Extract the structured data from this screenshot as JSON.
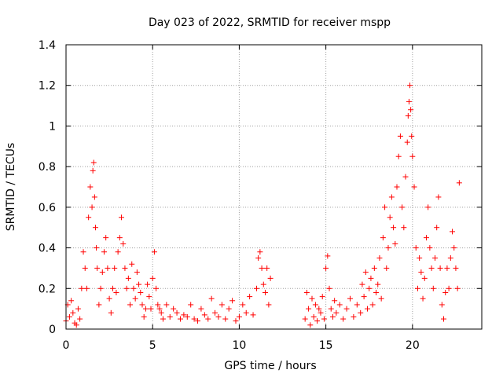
{
  "chart_data": {
    "type": "scatter",
    "title": "Day 023 of 2022, SRMTID for receiver mspp",
    "xlabel": "GPS time / hours",
    "ylabel": "SRMTID / TECUs",
    "xlim": [
      0,
      24
    ],
    "ylim": [
      0,
      1.4
    ],
    "x_ticks": [
      0,
      5,
      10,
      15,
      20
    ],
    "x_tick_labels": [
      "0",
      "5",
      "10",
      "15",
      "20"
    ],
    "y_ticks": [
      0,
      0.2,
      0.4,
      0.6,
      0.8,
      1,
      1.2,
      1.4
    ],
    "y_tick_labels": [
      "0",
      "0.2",
      "0.4",
      "0.6",
      "0.8",
      "1",
      "1.2",
      "1.4"
    ],
    "grid": true,
    "marker": "plus",
    "series_color": "#ff0000",
    "series": [
      {
        "name": "SRMTID",
        "x": [
          0.0,
          0.1,
          0.2,
          0.3,
          0.4,
          0.5,
          0.6,
          0.7,
          0.8,
          0.9,
          1.0,
          1.1,
          1.2,
          1.3,
          1.4,
          1.5,
          1.55,
          1.6,
          1.65,
          1.7,
          1.75,
          1.8,
          1.9,
          2.0,
          2.1,
          2.2,
          2.3,
          2.4,
          2.5,
          2.6,
          2.7,
          2.8,
          2.9,
          3.0,
          3.1,
          3.2,
          3.3,
          3.4,
          3.5,
          3.6,
          3.7,
          3.8,
          3.9,
          4.0,
          4.1,
          4.2,
          4.3,
          4.4,
          4.5,
          4.6,
          4.7,
          4.8,
          4.9,
          5.0,
          5.1,
          5.2,
          5.3,
          5.4,
          5.5,
          5.6,
          5.8,
          6.0,
          6.2,
          6.4,
          6.6,
          6.8,
          7.0,
          7.2,
          7.4,
          7.6,
          7.8,
          8.0,
          8.2,
          8.4,
          8.6,
          8.8,
          9.0,
          9.2,
          9.4,
          9.6,
          9.8,
          10.0,
          10.2,
          10.4,
          10.6,
          10.8,
          11.0,
          11.1,
          11.2,
          11.3,
          11.4,
          11.5,
          11.6,
          11.7,
          11.8,
          13.8,
          13.9,
          14.0,
          14.1,
          14.2,
          14.3,
          14.4,
          14.5,
          14.6,
          14.7,
          14.8,
          14.9,
          15.0,
          15.1,
          15.2,
          15.3,
          15.4,
          15.5,
          15.6,
          15.8,
          16.0,
          16.2,
          16.4,
          16.6,
          16.8,
          17.0,
          17.1,
          17.2,
          17.3,
          17.4,
          17.5,
          17.6,
          17.7,
          17.8,
          17.9,
          18.0,
          18.1,
          18.2,
          18.3,
          18.4,
          18.5,
          18.6,
          18.7,
          18.8,
          18.9,
          19.0,
          19.1,
          19.2,
          19.3,
          19.4,
          19.5,
          19.6,
          19.7,
          19.75,
          19.8,
          19.85,
          19.9,
          19.95,
          20.0,
          20.1,
          20.2,
          20.3,
          20.4,
          20.5,
          20.6,
          20.7,
          20.8,
          20.9,
          21.0,
          21.1,
          21.2,
          21.3,
          21.4,
          21.5,
          21.6,
          21.7,
          21.8,
          21.9,
          22.0,
          22.1,
          22.2,
          22.3,
          22.4,
          22.5,
          22.6,
          22.7
        ],
        "y": [
          0.04,
          0.12,
          0.06,
          0.14,
          0.08,
          0.03,
          0.02,
          0.1,
          0.05,
          0.2,
          0.38,
          0.3,
          0.2,
          0.55,
          0.7,
          0.6,
          0.78,
          0.82,
          0.65,
          0.5,
          0.4,
          0.3,
          0.12,
          0.2,
          0.28,
          0.38,
          0.45,
          0.3,
          0.15,
          0.08,
          0.2,
          0.3,
          0.18,
          0.38,
          0.45,
          0.55,
          0.42,
          0.3,
          0.2,
          0.25,
          0.12,
          0.32,
          0.2,
          0.15,
          0.28,
          0.22,
          0.18,
          0.12,
          0.06,
          0.1,
          0.22,
          0.16,
          0.1,
          0.25,
          0.38,
          0.2,
          0.12,
          0.1,
          0.08,
          0.05,
          0.12,
          0.06,
          0.1,
          0.08,
          0.05,
          0.07,
          0.06,
          0.12,
          0.05,
          0.04,
          0.1,
          0.07,
          0.05,
          0.15,
          0.08,
          0.06,
          0.12,
          0.05,
          0.1,
          0.14,
          0.04,
          0.06,
          0.12,
          0.08,
          0.16,
          0.07,
          0.2,
          0.35,
          0.38,
          0.3,
          0.22,
          0.18,
          0.3,
          0.12,
          0.25,
          0.05,
          0.18,
          0.1,
          0.02,
          0.15,
          0.06,
          0.12,
          0.04,
          0.1,
          0.08,
          0.16,
          0.05,
          0.3,
          0.36,
          0.2,
          0.1,
          0.06,
          0.14,
          0.08,
          0.12,
          0.05,
          0.1,
          0.15,
          0.06,
          0.12,
          0.08,
          0.22,
          0.16,
          0.28,
          0.1,
          0.2,
          0.25,
          0.12,
          0.3,
          0.18,
          0.22,
          0.35,
          0.15,
          0.45,
          0.6,
          0.3,
          0.4,
          0.55,
          0.65,
          0.5,
          0.42,
          0.7,
          0.85,
          0.95,
          0.6,
          0.5,
          0.75,
          0.92,
          1.05,
          1.12,
          1.2,
          1.08,
          0.95,
          0.85,
          0.7,
          0.4,
          0.2,
          0.35,
          0.28,
          0.15,
          0.25,
          0.45,
          0.6,
          0.4,
          0.3,
          0.2,
          0.35,
          0.5,
          0.65,
          0.3,
          0.12,
          0.05,
          0.18,
          0.3,
          0.2,
          0.35,
          0.48,
          0.4,
          0.3,
          0.2,
          0.72
        ]
      }
    ]
  }
}
